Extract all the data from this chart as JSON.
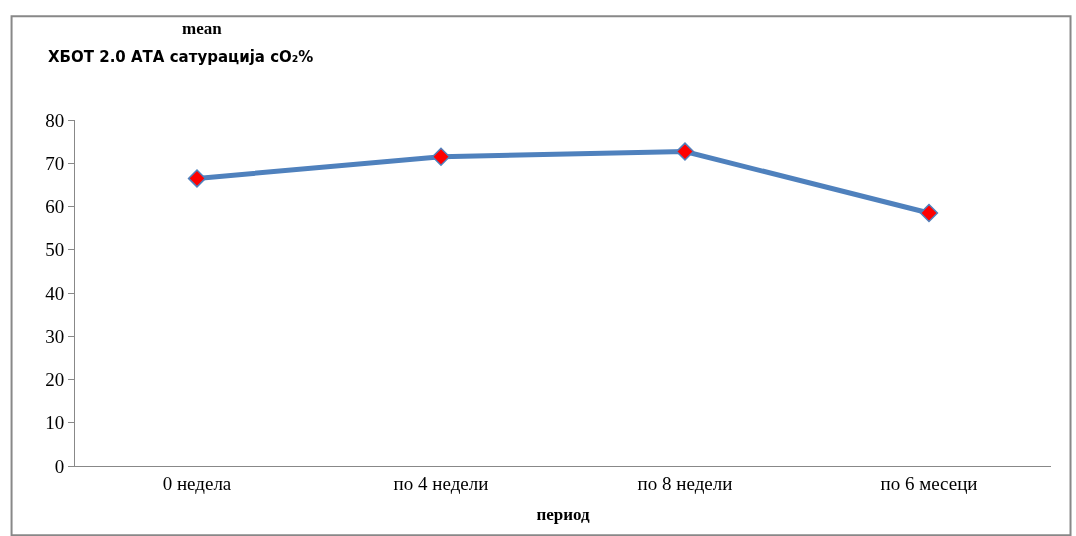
{
  "chart_data": {
    "type": "line",
    "title": "mean",
    "subtitle": "ХБОТ 2.0 АТА сатурација cO₂%",
    "xlabel": "период",
    "categories": [
      "0 недела",
      "по 4 недели",
      "по 8 недели",
      "по 6 месеци"
    ],
    "series": [
      {
        "color": "#4f81bd",
        "values": [
          66.5,
          71.5,
          72.7,
          58.5
        ]
      }
    ],
    "ylim": [
      0,
      80
    ],
    "yticks": [
      0,
      10,
      20,
      30,
      40,
      50,
      60,
      70,
      80
    ],
    "legend": false,
    "marker": "diamond",
    "line_style": "solid"
  }
}
